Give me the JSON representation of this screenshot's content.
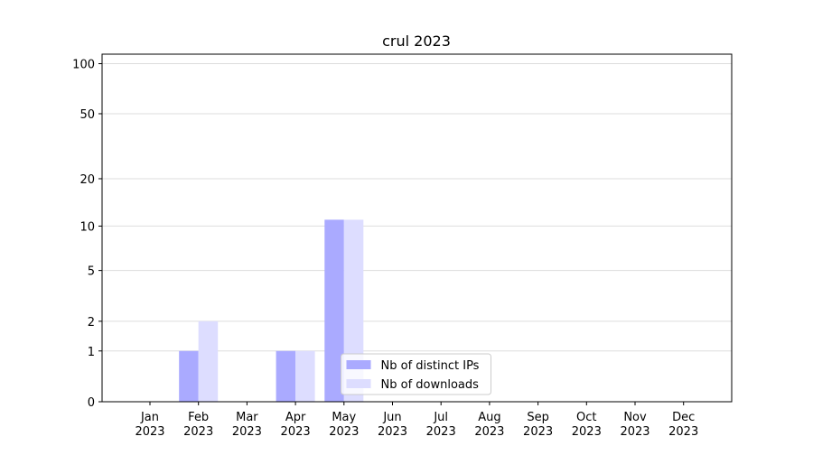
{
  "chart_data": {
    "type": "bar",
    "title": "crul 2023",
    "categories": [
      [
        "Jan",
        "2023"
      ],
      [
        "Feb",
        "2023"
      ],
      [
        "Mar",
        "2023"
      ],
      [
        "Apr",
        "2023"
      ],
      [
        "May",
        "2023"
      ],
      [
        "Jun",
        "2023"
      ],
      [
        "Jul",
        "2023"
      ],
      [
        "Aug",
        "2023"
      ],
      [
        "Sep",
        "2023"
      ],
      [
        "Oct",
        "2023"
      ],
      [
        "Nov",
        "2023"
      ],
      [
        "Dec",
        "2023"
      ]
    ],
    "series": [
      {
        "name": "Nb of distinct IPs",
        "color": "#aaaaff",
        "values": [
          0,
          1,
          0,
          1,
          11,
          0,
          0,
          0,
          0,
          0,
          0,
          0
        ]
      },
      {
        "name": "Nb of downloads",
        "color": "#ddddff",
        "values": [
          0,
          2,
          0,
          1,
          11,
          0,
          0,
          0,
          0,
          0,
          0,
          0
        ]
      }
    ],
    "yscale": "log1p",
    "ylim": [
      0,
      114
    ],
    "yticks": [
      0,
      1,
      2,
      5,
      10,
      20,
      50,
      100
    ],
    "grid": true,
    "legend": "lower center"
  }
}
